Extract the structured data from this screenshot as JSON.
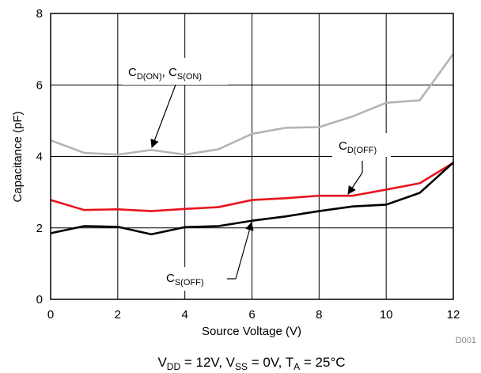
{
  "chart_data": {
    "type": "line",
    "xlabel": "Source Voltage (V)",
    "ylabel": "Capacitance (pF)",
    "xlim": [
      0,
      12
    ],
    "ylim": [
      0,
      8
    ],
    "xticks": [
      0,
      2,
      4,
      6,
      8,
      10,
      12
    ],
    "yticks": [
      0,
      2,
      4,
      6,
      8
    ],
    "grid": true,
    "x": [
      0,
      1,
      2,
      3,
      4,
      5,
      6,
      7,
      8,
      9,
      10,
      11,
      12
    ],
    "series": [
      {
        "key": "on",
        "name": "C_D(ON), C_S(ON)",
        "color": "#b4b4b4",
        "values": [
          4.45,
          4.1,
          4.05,
          4.18,
          4.05,
          4.2,
          4.63,
          4.8,
          4.82,
          5.12,
          5.5,
          5.57,
          6.87
        ]
      },
      {
        "key": "doff",
        "name": "C_D(OFF)",
        "color": "#e8141e",
        "values": [
          2.78,
          2.5,
          2.52,
          2.47,
          2.53,
          2.58,
          2.78,
          2.83,
          2.9,
          2.9,
          3.07,
          3.25,
          3.82
        ]
      },
      {
        "key": "soff",
        "name": "C_S(OFF)",
        "color": "#000000",
        "values": [
          1.85,
          2.05,
          2.03,
          1.82,
          2.02,
          2.05,
          2.2,
          2.32,
          2.47,
          2.6,
          2.65,
          2.98,
          3.83
        ]
      }
    ],
    "annotations": {
      "on": {
        "main1": "C",
        "sub1": "D(ON)",
        "sep": ", ",
        "main2": "C",
        "sub2": "S(ON)"
      },
      "doff": {
        "main": "C",
        "sub": "D(OFF)"
      },
      "soff": {
        "main": "C",
        "sub": "S(OFF)"
      }
    },
    "figure_id": "D001",
    "conditions": {
      "p1": "V",
      "s1": "DD",
      "t1": " = 12V, ",
      "p2": "V",
      "s2": "SS",
      "t2": " = 0V, ",
      "p3": "T",
      "s3": "A",
      "t3": " = 25°C"
    }
  }
}
